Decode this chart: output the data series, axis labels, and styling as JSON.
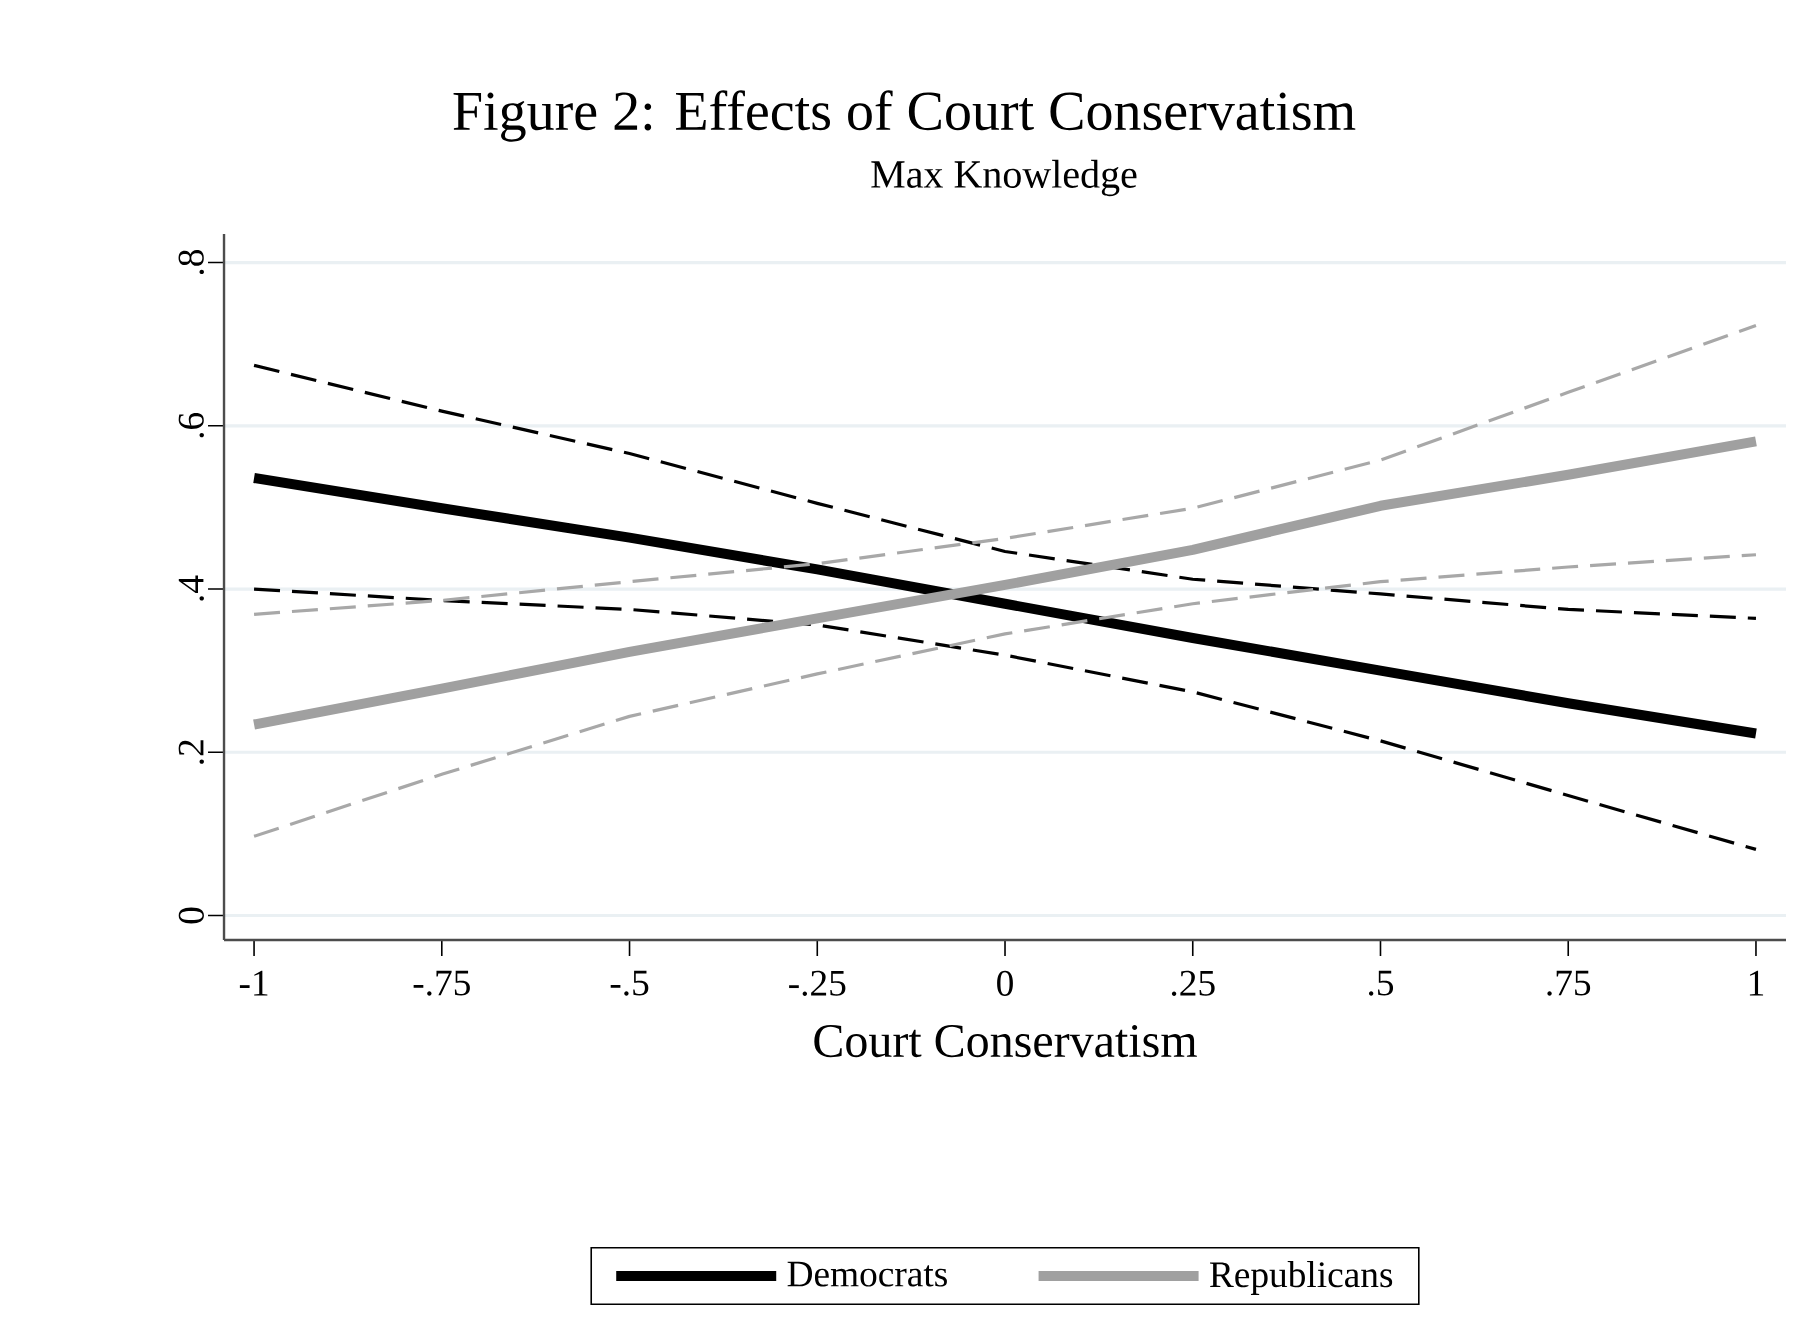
{
  "chart_data": {
    "type": "line",
    "title": "Figure 2: Effects of Court Conservatism",
    "subtitle": "Max Knowledge",
    "xlabel": "Court Conservatism",
    "x": [
      -1,
      -0.75,
      -0.5,
      -0.25,
      0,
      0.25,
      0.5,
      0.75,
      1
    ],
    "xlim": [
      -1.04,
      1.04
    ],
    "xticks": [
      {
        "value": -1,
        "label": "-1"
      },
      {
        "value": -0.75,
        "label": "-.75"
      },
      {
        "value": -0.5,
        "label": "-.5"
      },
      {
        "value": -0.25,
        "label": "-.25"
      },
      {
        "value": 0,
        "label": "0"
      },
      {
        "value": 0.25,
        "label": ".25"
      },
      {
        "value": 0.5,
        "label": ".5"
      },
      {
        "value": 0.75,
        "label": ".75"
      },
      {
        "value": 1,
        "label": "1"
      }
    ],
    "ylim": [
      -0.03,
      0.835
    ],
    "yticks": [
      {
        "value": 0,
        "label": "0"
      },
      {
        "value": 0.2,
        "label": ".2"
      },
      {
        "value": 0.4,
        "label": ".4"
      },
      {
        "value": 0.6,
        "label": ".6"
      },
      {
        "value": 0.8,
        "label": ".8"
      }
    ],
    "grid": "y",
    "legend": "bottom",
    "series": [
      {
        "name": "Democrats",
        "color": "#000000",
        "line_style": "solid",
        "values": [
          0.536,
          0.499,
          0.463,
          0.424,
          0.382,
          0.34,
          0.3,
          0.26,
          0.223
        ]
      },
      {
        "color": "#000000",
        "line_style": "dashed",
        "values": [
          0.674,
          0.618,
          0.566,
          0.505,
          0.446,
          0.412,
          0.394,
          0.375,
          0.364
        ]
      },
      {
        "color": "#000000",
        "line_style": "dashed",
        "values": [
          0.4,
          0.386,
          0.375,
          0.356,
          0.319,
          0.274,
          0.214,
          0.147,
          0.081
        ]
      },
      {
        "name": "Republicans",
        "color": "#a0a0a0",
        "line_style": "solid",
        "values": [
          0.234,
          0.278,
          0.323,
          0.364,
          0.405,
          0.448,
          0.502,
          0.54,
          0.581
        ]
      },
      {
        "color": "#a8a8a8",
        "line_style": "dashed",
        "values": [
          0.369,
          0.386,
          0.409,
          0.431,
          0.462,
          0.499,
          0.558,
          0.641,
          0.723
        ]
      },
      {
        "color": "#a8a8a8",
        "line_style": "dashed",
        "values": [
          0.097,
          0.173,
          0.244,
          0.296,
          0.345,
          0.382,
          0.409,
          0.427,
          0.442
        ]
      }
    ]
  }
}
